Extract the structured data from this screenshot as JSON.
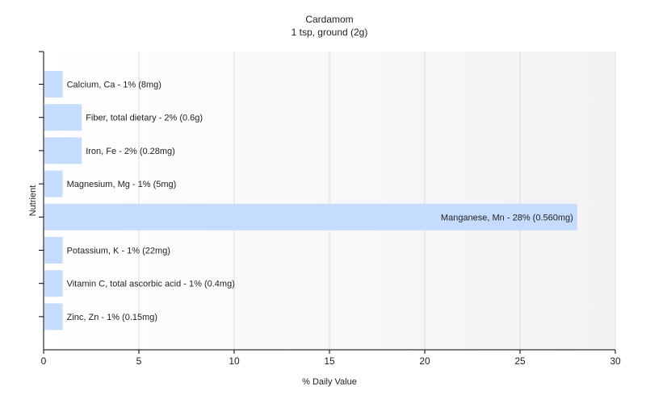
{
  "chart_data": {
    "type": "bar",
    "orientation": "horizontal",
    "title": "Cardamom",
    "subtitle": "1 tsp, ground (2g)",
    "xlabel": "% Daily Value",
    "ylabel": "Nutrient",
    "xlim": [
      0,
      30
    ],
    "x_ticks": [
      "0",
      "5",
      "10",
      "15",
      "20",
      "25",
      "30"
    ],
    "grid": true,
    "bar_color": "#c6dcff",
    "categories": [
      "Calcium, Ca",
      "Fiber, total dietary",
      "Iron, Fe",
      "Magnesium, Mg",
      "Manganese, Mn",
      "Potassium, K",
      "Vitamin C, total ascorbic acid",
      "Zinc, Zn"
    ],
    "values": [
      1,
      2,
      2,
      1,
      28,
      1,
      1,
      1
    ],
    "labels": [
      "Calcium, Ca - 1% (8mg)",
      "Fiber, total dietary - 2% (0.6g)",
      "Iron, Fe - 2% (0.28mg)",
      "Magnesium, Mg - 1% (5mg)",
      "Manganese, Mn - 28% (0.560mg)",
      "Potassium, K - 1% (22mg)",
      "Vitamin C, total ascorbic acid - 1% (0.4mg)",
      "Zinc, Zn - 1% (0.15mg)"
    ]
  }
}
